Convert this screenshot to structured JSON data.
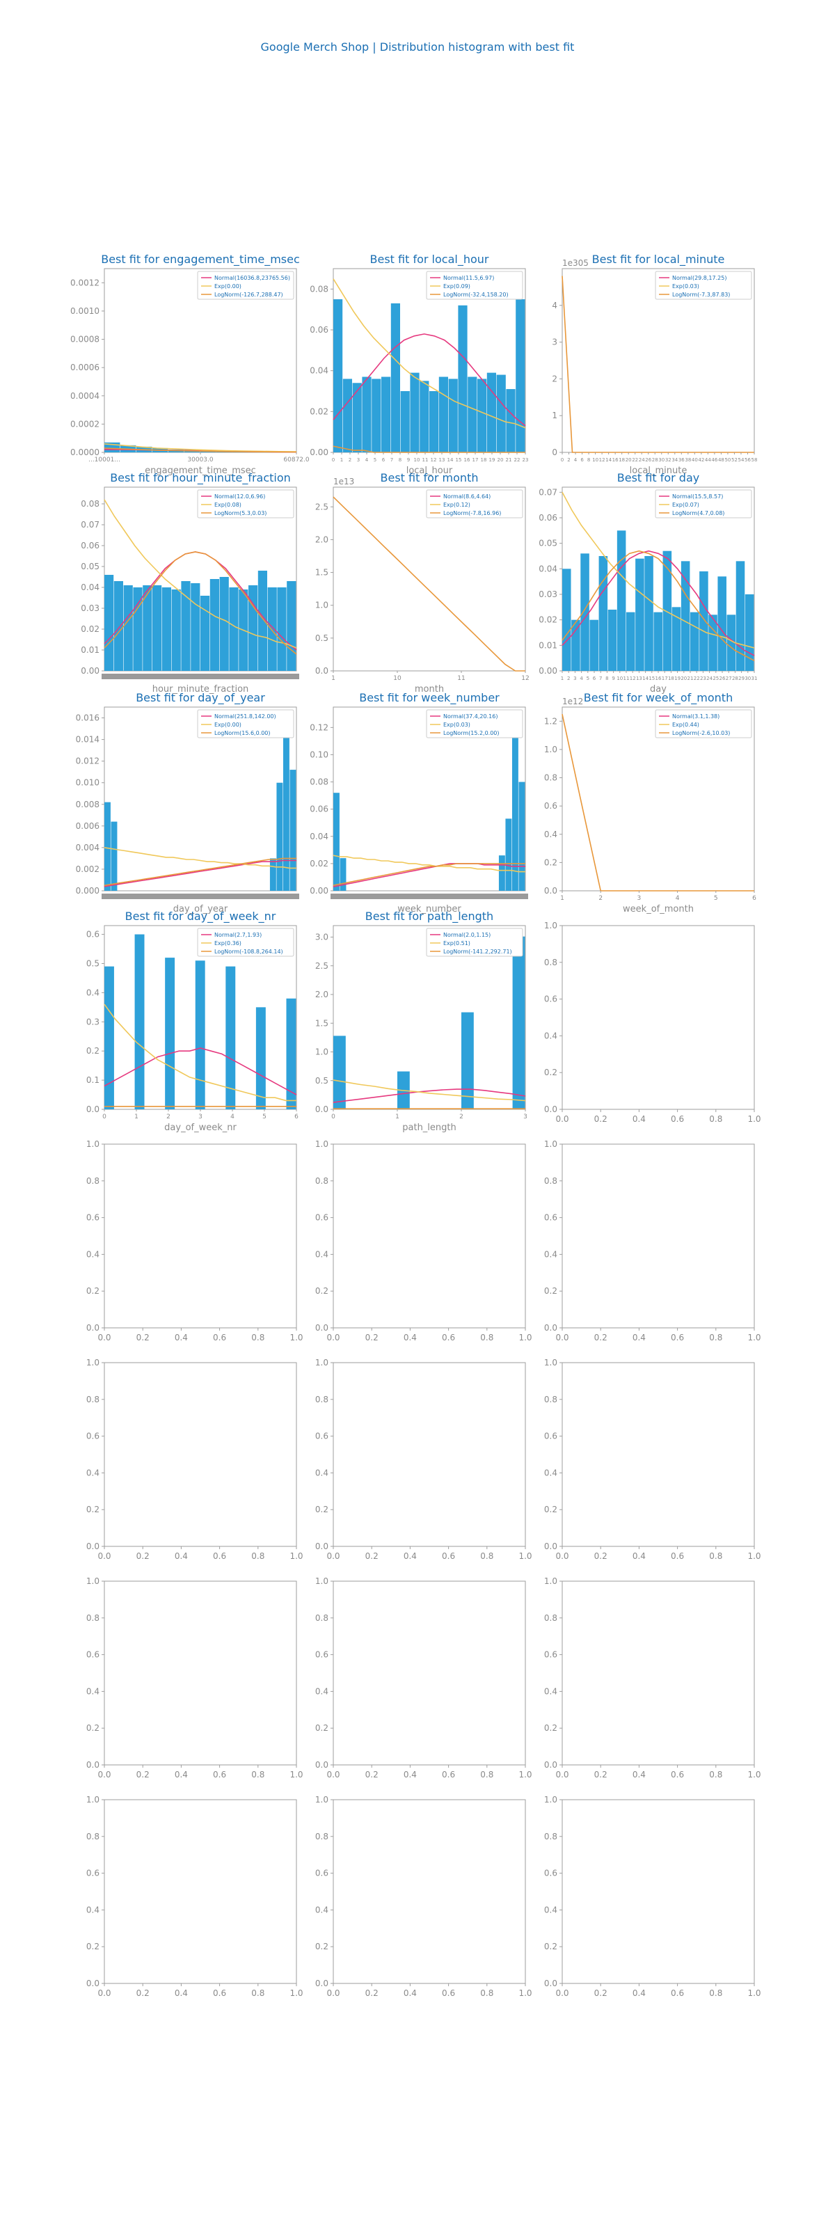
{
  "page": {
    "title": "Google Merch Shop | Distribution histogram with best fit"
  },
  "colors": {
    "bar": "#2ea1d9",
    "normal": "#e6397f",
    "exp": "#f0c85a",
    "lognorm": "#e8973a",
    "title": "#1b6fb3",
    "axis": "#9e9e9e",
    "tick_text": "#8a8a8a",
    "legend_text": "#1b6fb3"
  },
  "chart_data": [
    {
      "type": "bar",
      "title": "Best fit for engagement_time_msec",
      "xlabel": "engagement_time_msec",
      "ylim": [
        0,
        0.0013
      ],
      "yticks": [
        "0.0000",
        "0.0002",
        "0.0004",
        "0.0006",
        "0.0008",
        "0.0010",
        "0.0012"
      ],
      "ytick_values": [
        0,
        0.0002,
        0.0004,
        0.0006,
        0.0008,
        0.001,
        0.0012
      ],
      "xtick_labels": [
        "...10001...",
        "30003.0",
        "60872.0"
      ],
      "legend": [
        "Normal(16036.8,23765.56)",
        "Exp(0.00)",
        "LogNorm(-126.7,288.47)"
      ],
      "values": [
        7e-05,
        5e-05,
        4e-05,
        3e-05,
        2e-05,
        2e-05,
        1e-05,
        1e-05,
        1e-05,
        1e-05,
        5e-06,
        5e-06
      ],
      "normal": [
        2e-05,
        2e-05,
        1.8e-05,
        1.6e-05,
        1.4e-05,
        1.2e-05,
        1e-05,
        8e-06,
        6e-06,
        4e-06,
        3e-06,
        2e-06
      ],
      "exp": [
        6e-05,
        5e-05,
        4e-05,
        3e-05,
        2.5e-05,
        2e-05,
        1.6e-05,
        1.2e-05,
        1e-05,
        8e-06,
        6e-06,
        5e-06
      ],
      "lognorm": [
        3e-05,
        2.5e-05,
        2e-05,
        1.6e-05,
        1.3e-05,
        1e-05,
        8e-06,
        6e-06,
        5e-06,
        4e-06,
        3e-06,
        2e-06
      ]
    },
    {
      "type": "bar",
      "title": "Best fit for local_hour",
      "xlabel": "local_hour",
      "ylim": [
        0,
        0.09
      ],
      "yticks": [
        "0.00",
        "0.02",
        "0.04",
        "0.06",
        "0.08"
      ],
      "ytick_values": [
        0,
        0.02,
        0.04,
        0.06,
        0.08
      ],
      "xtick_labels": [
        "0",
        "1",
        "2",
        "3",
        "4",
        "5",
        "6",
        "7",
        "8",
        "9",
        "10",
        "11",
        "12",
        "13",
        "14",
        "15",
        "16",
        "17",
        "18",
        "19",
        "20",
        "21",
        "22",
        "23"
      ],
      "legend": [
        "Normal(11.5,6.97)",
        "Exp(0.09)",
        "LogNorm(-32.4,158.20)"
      ],
      "values": [
        0.075,
        0.036,
        0.034,
        0.037,
        0.036,
        0.037,
        0.073,
        0.03,
        0.039,
        0.035,
        0.03,
        0.037,
        0.036,
        0.072,
        0.037,
        0.036,
        0.039,
        0.038,
        0.031,
        0.075
      ],
      "normal": [
        0.016,
        0.022,
        0.028,
        0.034,
        0.04,
        0.046,
        0.051,
        0.055,
        0.057,
        0.058,
        0.057,
        0.055,
        0.051,
        0.046,
        0.04,
        0.034,
        0.028,
        0.022,
        0.017,
        0.013
      ],
      "exp": [
        0.085,
        0.077,
        0.069,
        0.062,
        0.056,
        0.051,
        0.046,
        0.041,
        0.037,
        0.034,
        0.031,
        0.028,
        0.025,
        0.023,
        0.021,
        0.019,
        0.017,
        0.015,
        0.014,
        0.012
      ],
      "lognorm": [
        0.003,
        0.002,
        0.001,
        0.001,
        0.0,
        0.0,
        0.0,
        0.0,
        0.0,
        0.0,
        0.0,
        0.0,
        0.0,
        0.0,
        0.0,
        0.0,
        0.0,
        0.0,
        0.0,
        0.0
      ]
    },
    {
      "type": "bar",
      "title": "Best fit for local_minute",
      "xlabel": "local_minute",
      "multiplier": "1e305",
      "ylim": [
        0,
        5
      ],
      "yticks": [
        "0",
        "1",
        "2",
        "3",
        "4"
      ],
      "ytick_values": [
        0,
        1,
        2,
        3,
        4
      ],
      "xtick_labels": [
        "0",
        "2",
        "4",
        "6",
        "8",
        "10",
        "12",
        "14",
        "16",
        "18",
        "20",
        "22",
        "24",
        "26",
        "28",
        "30",
        "32",
        "34",
        "36",
        "38",
        "40",
        "42",
        "44",
        "46",
        "48",
        "50",
        "52",
        "54",
        "56",
        "58"
      ],
      "legend": [
        "Normal(29.8,17.25)",
        "Exp(0.03)",
        "LogNorm(-7.3,87.83)"
      ],
      "values": [],
      "normal": [],
      "exp": [],
      "lognorm": [
        4.8,
        0.0,
        0.0,
        0.0,
        0.0,
        0.0,
        0.0,
        0.0,
        0.0,
        0.0,
        0.0,
        0.0,
        0.0,
        0.0,
        0.0,
        0.0,
        0.0,
        0.0,
        0.0,
        0.0
      ]
    },
    {
      "type": "bar",
      "title": "Best fit for hour_minute_fraction",
      "xlabel": "hour_minute_fraction",
      "ylim": [
        0,
        0.088
      ],
      "yticks": [
        "0.00",
        "0.01",
        "0.02",
        "0.03",
        "0.04",
        "0.05",
        "0.06",
        "0.07",
        "0.08"
      ],
      "ytick_values": [
        0,
        0.01,
        0.02,
        0.03,
        0.04,
        0.05,
        0.06,
        0.07,
        0.08
      ],
      "xtick_labels": [],
      "legend": [
        "Normal(12.0,6.96)",
        "Exp(0.08)",
        "LogNorm(5.3,0.03)"
      ],
      "values": [
        0.046,
        0.043,
        0.041,
        0.04,
        0.041,
        0.041,
        0.04,
        0.039,
        0.043,
        0.042,
        0.036,
        0.044,
        0.045,
        0.04,
        0.039,
        0.041,
        0.048,
        0.04,
        0.04,
        0.043
      ],
      "normal": [
        0.013,
        0.018,
        0.024,
        0.03,
        0.037,
        0.043,
        0.049,
        0.053,
        0.056,
        0.057,
        0.056,
        0.053,
        0.049,
        0.043,
        0.037,
        0.03,
        0.024,
        0.019,
        0.014,
        0.01
      ],
      "exp": [
        0.082,
        0.074,
        0.067,
        0.06,
        0.054,
        0.049,
        0.044,
        0.04,
        0.036,
        0.032,
        0.029,
        0.026,
        0.024,
        0.021,
        0.019,
        0.017,
        0.016,
        0.014,
        0.013,
        0.011
      ],
      "lognorm": [
        0.011,
        0.016,
        0.022,
        0.028,
        0.035,
        0.042,
        0.048,
        0.053,
        0.056,
        0.057,
        0.056,
        0.053,
        0.048,
        0.042,
        0.036,
        0.029,
        0.023,
        0.017,
        0.012,
        0.008
      ]
    },
    {
      "type": "bar",
      "title": "Best fit for month",
      "xlabel": "month",
      "multiplier": "1e13",
      "ylim": [
        0,
        2.8
      ],
      "yticks": [
        "0.0",
        "0.5",
        "1.0",
        "1.5",
        "2.0",
        "2.5"
      ],
      "ytick_values": [
        0,
        0.5,
        1,
        1.5,
        2,
        2.5
      ],
      "xtick_labels": [
        "1",
        "10",
        "11",
        "12"
      ],
      "legend": [
        "Normal(8.6,4.64)",
        "Exp(0.12)",
        "LogNorm(-7.8,16.96)"
      ],
      "values": [],
      "normal": [],
      "exp": [],
      "lognorm": [
        2.65,
        2.5,
        2.35,
        2.2,
        2.05,
        1.9,
        1.75,
        1.6,
        1.45,
        1.3,
        1.15,
        1.0,
        0.85,
        0.7,
        0.55,
        0.4,
        0.25,
        0.1,
        0.0,
        0.0
      ]
    },
    {
      "type": "bar",
      "title": "Best fit for day",
      "xlabel": "day",
      "ylim": [
        0,
        0.072
      ],
      "yticks": [
        "0.00",
        "0.01",
        "0.02",
        "0.03",
        "0.04",
        "0.05",
        "0.06",
        "0.07"
      ],
      "ytick_values": [
        0,
        0.01,
        0.02,
        0.03,
        0.04,
        0.05,
        0.06,
        0.07
      ],
      "xtick_labels": [
        "1",
        "2",
        "3",
        "4",
        "5",
        "6",
        "7",
        "8",
        "9",
        "10",
        "11",
        "12",
        "13",
        "14",
        "15",
        "16",
        "17",
        "18",
        "19",
        "20",
        "21",
        "22",
        "23",
        "24",
        "25",
        "26",
        "27",
        "28",
        "29",
        "30",
        "31"
      ],
      "legend": [
        "Normal(15.5,8.57)",
        "Exp(0.07)",
        "LogNorm(4.7,0.08)"
      ],
      "values": [
        0.04,
        0.02,
        0.046,
        0.02,
        0.045,
        0.024,
        0.055,
        0.023,
        0.044,
        0.045,
        0.023,
        0.047,
        0.025,
        0.043,
        0.023,
        0.039,
        0.022,
        0.037,
        0.022,
        0.043,
        0.03
      ],
      "normal": [
        0.01,
        0.014,
        0.019,
        0.024,
        0.03,
        0.035,
        0.04,
        0.044,
        0.046,
        0.047,
        0.046,
        0.044,
        0.04,
        0.035,
        0.03,
        0.024,
        0.019,
        0.014,
        0.011,
        0.008,
        0.006
      ],
      "exp": [
        0.07,
        0.063,
        0.057,
        0.052,
        0.047,
        0.042,
        0.038,
        0.034,
        0.031,
        0.028,
        0.025,
        0.023,
        0.021,
        0.019,
        0.017,
        0.015,
        0.014,
        0.013,
        0.011,
        0.01,
        0.009
      ],
      "lognorm": [
        0.012,
        0.017,
        0.022,
        0.028,
        0.034,
        0.039,
        0.043,
        0.046,
        0.047,
        0.046,
        0.044,
        0.04,
        0.035,
        0.029,
        0.024,
        0.019,
        0.015,
        0.011,
        0.008,
        0.006,
        0.004
      ]
    },
    {
      "type": "bar",
      "title": "Best fit for day_of_year",
      "xlabel": "day_of_year",
      "ylim": [
        0,
        0.017
      ],
      "yticks": [
        "0.000",
        "0.002",
        "0.004",
        "0.006",
        "0.008",
        "0.010",
        "0.012",
        "0.014",
        "0.016"
      ],
      "ytick_values": [
        0,
        0.002,
        0.004,
        0.006,
        0.008,
        0.01,
        0.012,
        0.014,
        0.016
      ],
      "xtick_labels": [],
      "legend": [
        "Normal(251.8,142.00)",
        "Exp(0.00)",
        "LogNorm(15.6,0.00)"
      ],
      "values": [
        0.0082,
        0.0064,
        0,
        0,
        0,
        0,
        0,
        0,
        0,
        0,
        0,
        0,
        0,
        0,
        0,
        0,
        0,
        0,
        0,
        0,
        0,
        0,
        0,
        0,
        0,
        0.003,
        0.01,
        0.0163,
        0.0112
      ],
      "normal": [
        0.0004,
        0.0005,
        0.0006,
        0.0007,
        0.0008,
        0.0009,
        0.001,
        0.0011,
        0.0012,
        0.0013,
        0.0014,
        0.0015,
        0.0016,
        0.0017,
        0.0018,
        0.0019,
        0.002,
        0.0021,
        0.0022,
        0.0023,
        0.0024,
        0.0025,
        0.0026,
        0.0027,
        0.0027,
        0.0027,
        0.0028,
        0.0028,
        0.0028
      ],
      "exp": [
        0.004,
        0.0039,
        0.0038,
        0.0037,
        0.0036,
        0.0035,
        0.0034,
        0.0033,
        0.0032,
        0.0031,
        0.0031,
        0.003,
        0.0029,
        0.0029,
        0.0028,
        0.0027,
        0.0027,
        0.0026,
        0.0026,
        0.0025,
        0.0025,
        0.0024,
        0.0024,
        0.0023,
        0.0023,
        0.0022,
        0.0022,
        0.0021,
        0.0021
      ],
      "lognorm": [
        0.0005,
        0.0006,
        0.0007,
        0.0008,
        0.0009,
        0.001,
        0.0011,
        0.0012,
        0.0013,
        0.0014,
        0.0015,
        0.0016,
        0.0017,
        0.0018,
        0.0019,
        0.002,
        0.0021,
        0.0022,
        0.0023,
        0.0024,
        0.0025,
        0.0026,
        0.0027,
        0.0028,
        0.0029,
        0.0029,
        0.003,
        0.003,
        0.003
      ]
    },
    {
      "type": "bar",
      "title": "Best fit for week_number",
      "xlabel": "week_number",
      "ylim": [
        0,
        0.135
      ],
      "yticks": [
        "0.00",
        "0.02",
        "0.04",
        "0.06",
        "0.08",
        "0.10",
        "0.12"
      ],
      "ytick_values": [
        0,
        0.02,
        0.04,
        0.06,
        0.08,
        0.1,
        0.12
      ],
      "xtick_labels": [],
      "legend": [
        "Normal(37.4,20.16)",
        "Exp(0.03)",
        "LogNorm(15.2,0.00)"
      ],
      "values": [
        0.072,
        0.024,
        0,
        0,
        0,
        0,
        0,
        0,
        0,
        0,
        0,
        0,
        0,
        0,
        0,
        0,
        0,
        0,
        0,
        0,
        0,
        0,
        0,
        0,
        0,
        0.026,
        0.053,
        0.129,
        0.08
      ],
      "normal": [
        0.003,
        0.004,
        0.005,
        0.006,
        0.007,
        0.008,
        0.009,
        0.01,
        0.011,
        0.012,
        0.013,
        0.014,
        0.015,
        0.016,
        0.017,
        0.018,
        0.019,
        0.02,
        0.02,
        0.02,
        0.02,
        0.02,
        0.019,
        0.019,
        0.019,
        0.019,
        0.018,
        0.018,
        0.018
      ],
      "exp": [
        0.026,
        0.025,
        0.025,
        0.024,
        0.024,
        0.023,
        0.023,
        0.022,
        0.022,
        0.021,
        0.021,
        0.02,
        0.02,
        0.019,
        0.019,
        0.018,
        0.018,
        0.018,
        0.017,
        0.017,
        0.017,
        0.016,
        0.016,
        0.016,
        0.015,
        0.015,
        0.015,
        0.014,
        0.014
      ],
      "lognorm": [
        0.004,
        0.005,
        0.006,
        0.007,
        0.008,
        0.009,
        0.01,
        0.011,
        0.012,
        0.013,
        0.014,
        0.015,
        0.016,
        0.017,
        0.018,
        0.018,
        0.019,
        0.019,
        0.02,
        0.02,
        0.02,
        0.02,
        0.02,
        0.02,
        0.02,
        0.02,
        0.02,
        0.02,
        0.02
      ]
    },
    {
      "type": "bar",
      "title": "Best fit for week_of_month",
      "xlabel": "week_of_month",
      "multiplier": "1e12",
      "ylim": [
        0,
        1.3
      ],
      "yticks": [
        "0.0",
        "0.2",
        "0.4",
        "0.6",
        "0.8",
        "1.0",
        "1.2"
      ],
      "ytick_values": [
        0,
        0.2,
        0.4,
        0.6,
        0.8,
        1.0,
        1.2
      ],
      "xtick_labels": [
        "1",
        "2",
        "3",
        "4",
        "5",
        "6"
      ],
      "legend": [
        "Normal(3.1,1.38)",
        "Exp(0.44)",
        "LogNorm(-2.6,10.03)"
      ],
      "values": [],
      "normal": [],
      "exp": [],
      "lognorm": [
        1.25,
        0.62,
        0.0,
        0.0,
        0.0,
        0.0,
        0.0,
        0.0,
        0.0,
        0.0,
        0.0
      ]
    },
    {
      "type": "bar",
      "title": "Best fit for day_of_week_nr",
      "xlabel": "day_of_week_nr",
      "ylim": [
        0,
        0.63
      ],
      "yticks": [
        "0.0",
        "0.1",
        "0.2",
        "0.3",
        "0.4",
        "0.5",
        "0.6"
      ],
      "ytick_values": [
        0,
        0.1,
        0.2,
        0.3,
        0.4,
        0.5,
        0.6
      ],
      "xtick_labels": [
        "0",
        "1",
        "2",
        "3",
        "4",
        "5",
        "6"
      ],
      "legend": [
        "Normal(2.7,1.93)",
        "Exp(0.36)",
        "LogNorm(-108.8,264.14)"
      ],
      "values": [
        0.49,
        0,
        0,
        0.6,
        0,
        0,
        0.52,
        0,
        0,
        0.51,
        0,
        0,
        0.49,
        0,
        0,
        0.35,
        0,
        0,
        0.38
      ],
      "normal": [
        0.08,
        0.1,
        0.12,
        0.14,
        0.16,
        0.18,
        0.19,
        0.2,
        0.2,
        0.21,
        0.2,
        0.19,
        0.17,
        0.15,
        0.13,
        0.11,
        0.09,
        0.07,
        0.05
      ],
      "exp": [
        0.36,
        0.31,
        0.27,
        0.23,
        0.2,
        0.17,
        0.15,
        0.13,
        0.11,
        0.1,
        0.09,
        0.08,
        0.07,
        0.06,
        0.05,
        0.04,
        0.04,
        0.03,
        0.03
      ],
      "lognorm": [
        0.01,
        0.01,
        0.01,
        0.01,
        0.01,
        0.01,
        0.01,
        0.01,
        0.01,
        0.01,
        0.01,
        0.01,
        0.01,
        0.01,
        0.01,
        0.01,
        0.01,
        0.01,
        0.01
      ]
    },
    {
      "type": "bar",
      "title": "Best fit for path_length",
      "xlabel": "path_length",
      "ylim": [
        0,
        3.2
      ],
      "yticks": [
        "0.0",
        "0.5",
        "1.0",
        "1.5",
        "2.0",
        "2.5",
        "3.0"
      ],
      "ytick_values": [
        0,
        0.5,
        1,
        1.5,
        2,
        2.5,
        3
      ],
      "xtick_labels": [
        "0",
        "1",
        "2",
        "3"
      ],
      "legend": [
        "Normal(2.0,1.15)",
        "Exp(0.51)",
        "LogNorm(-141.2,292.71)"
      ],
      "values": [
        1.28,
        0,
        0,
        0,
        0,
        0.66,
        0,
        0,
        0,
        0,
        1.69,
        0,
        0,
        0,
        3.01
      ],
      "normal": [
        0.12,
        0.15,
        0.18,
        0.21,
        0.24,
        0.27,
        0.3,
        0.32,
        0.34,
        0.35,
        0.35,
        0.33,
        0.3,
        0.27,
        0.23
      ],
      "exp": [
        0.51,
        0.47,
        0.43,
        0.4,
        0.36,
        0.33,
        0.31,
        0.28,
        0.26,
        0.24,
        0.22,
        0.2,
        0.18,
        0.17,
        0.15
      ],
      "lognorm": [
        0.01,
        0.01,
        0.01,
        0.01,
        0.01,
        0.01,
        0.01,
        0.01,
        0.01,
        0.01,
        0.01,
        0.01,
        0.01,
        0.01,
        0.01
      ]
    }
  ],
  "empty_panels": {
    "count": 13,
    "yticks": [
      "0.0",
      "0.2",
      "0.4",
      "0.6",
      "0.8",
      "1.0"
    ],
    "xticks": [
      "0.0",
      "0.2",
      "0.4",
      "0.6",
      "0.8",
      "1.0"
    ]
  }
}
